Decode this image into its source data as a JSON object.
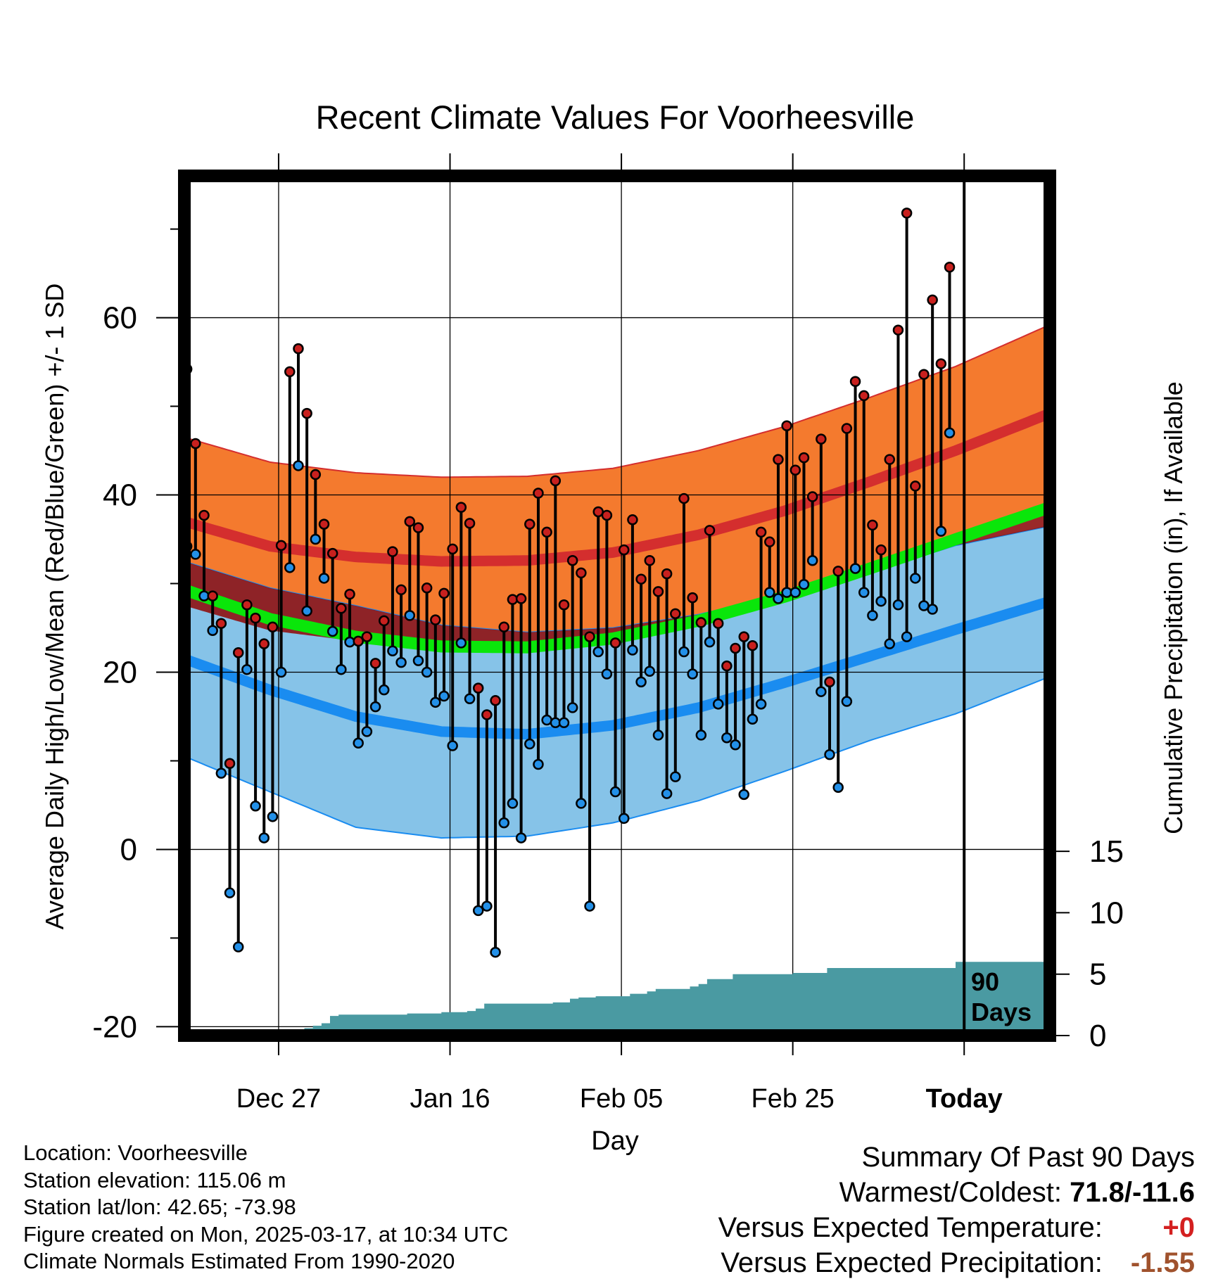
{
  "chart_data": {
    "type": "line",
    "title": "Recent Climate Values For Voorheesville",
    "xlabel": "Day",
    "ylabel": "Average Daily High/Low/Mean (Red/Blue/Green) +/- 1 SD",
    "y2label": "Cumulative Precipitation (in), If Available",
    "x_tick_labels": [
      "Dec 27",
      "Jan 16",
      "Feb 05",
      "Feb 25",
      "Today"
    ],
    "x_tick_days": [
      11,
      31,
      51,
      71,
      91
    ],
    "xlim": [
      0,
      101
    ],
    "ylim": [
      -21,
      76
    ],
    "y_ticks": [
      -20,
      0,
      20,
      40,
      60
    ],
    "y2lim": [
      0,
      70
    ],
    "y2_ticks": [
      0,
      5,
      10,
      15
    ],
    "today_label": "90\nDays",
    "today_label_line1": "90",
    "today_label_line2": "Days",
    "normals": {
      "days": [
        0,
        10,
        20,
        30,
        40,
        50,
        60,
        70,
        80,
        90,
        101
      ],
      "high_mean": [
        37.0,
        34.2,
        33.0,
        32.5,
        32.6,
        33.5,
        35.5,
        38.2,
        41.5,
        45.0,
        49.2
      ],
      "high_sd": [
        9.5,
        9.5,
        9.5,
        9.5,
        9.5,
        9.5,
        9.5,
        9.5,
        9.5,
        9.5,
        10.0
      ],
      "low_mean": [
        21.5,
        18.0,
        15.0,
        13.3,
        13.0,
        14.0,
        16.0,
        18.8,
        21.8,
        24.8,
        28.0
      ],
      "low_sd": [
        11.0,
        11.5,
        12.5,
        12.0,
        11.5,
        11.0,
        10.5,
        10.0,
        9.5,
        9.5,
        8.5
      ],
      "mean": [
        29.3,
        26.0,
        24.0,
        22.9,
        22.8,
        23.8,
        25.8,
        28.5,
        31.7,
        35.0,
        38.6
      ]
    },
    "observed_highs": [
      54.2,
      45.8,
      37.7,
      28.6,
      25.5,
      9.7,
      22.2,
      27.6,
      26.1,
      23.2,
      25.1,
      34.3,
      53.9,
      56.5,
      49.2,
      42.3,
      36.7,
      33.4,
      27.2,
      28.8,
      23.5,
      24.0,
      21.0,
      25.8,
      33.6,
      29.3,
      37.0,
      36.3,
      29.5,
      25.9,
      28.9,
      33.9,
      38.6,
      36.8,
      18.2,
      15.2,
      16.8,
      25.1,
      28.2,
      28.3,
      36.7,
      40.2,
      35.8,
      41.6,
      27.6,
      32.6,
      31.2,
      24.0,
      38.1,
      37.7,
      23.3,
      33.8,
      37.2,
      30.5,
      32.6,
      29.1,
      31.1,
      26.6,
      39.6,
      28.4,
      25.6,
      36.0,
      25.5,
      20.7,
      22.7,
      24.0,
      23.0,
      35.8,
      34.7,
      44.0,
      47.8,
      42.8,
      44.2,
      39.8,
      46.3,
      18.9,
      31.4,
      47.5,
      52.8,
      51.2,
      36.6,
      33.8,
      44.0,
      58.6,
      71.8,
      41.0,
      53.6,
      62.0,
      54.8,
      65.7
    ],
    "observed_lows": [
      34.2,
      33.3,
      28.6,
      24.7,
      8.6,
      -4.9,
      -11.0,
      20.3,
      4.9,
      1.3,
      3.7,
      20.0,
      31.8,
      43.3,
      26.9,
      35.0,
      30.6,
      24.6,
      20.3,
      23.4,
      12.0,
      13.3,
      16.1,
      18.0,
      22.4,
      21.1,
      26.4,
      21.3,
      20.0,
      16.6,
      17.3,
      11.7,
      23.3,
      17.0,
      -6.9,
      -6.4,
      -11.6,
      3.0,
      5.2,
      1.3,
      11.9,
      9.6,
      14.6,
      14.3,
      14.3,
      16.0,
      5.2,
      -6.4,
      22.3,
      19.8,
      6.5,
      3.5,
      22.5,
      18.9,
      20.1,
      12.9,
      6.3,
      8.2,
      22.3,
      19.8,
      12.9,
      23.4,
      16.4,
      12.6,
      11.8,
      6.2,
      14.7,
      16.4,
      29.0,
      28.3,
      29.0,
      29.0,
      29.9,
      32.6,
      17.8,
      10.7,
      7.0,
      16.7,
      31.7,
      29.0,
      26.4,
      28.0,
      23.2,
      27.6,
      24.0,
      30.6,
      27.5,
      27.1,
      35.9,
      47.0
    ],
    "precip_cumulative": {
      "days": [
        0,
        3,
        4,
        5,
        6,
        7,
        8,
        10,
        12,
        14,
        15,
        16,
        17,
        18,
        19,
        20,
        22,
        25,
        26,
        28,
        30,
        31,
        32,
        33,
        34,
        35,
        36,
        38,
        40,
        42,
        43,
        44,
        45,
        46,
        48,
        49,
        50,
        51,
        52,
        54,
        55,
        56,
        57,
        58,
        59,
        60,
        61,
        64,
        65,
        66,
        70,
        71,
        72,
        75,
        76,
        78,
        79,
        85,
        86,
        87,
        88,
        90,
        101
      ],
      "values": [
        0.0,
        0.0,
        0.3,
        0.4,
        0.4,
        0.4,
        0.5,
        0.5,
        0.5,
        0.6,
        0.8,
        1.0,
        1.6,
        1.7,
        1.7,
        1.7,
        1.7,
        1.7,
        1.8,
        1.8,
        1.9,
        1.9,
        1.9,
        2.0,
        2.2,
        2.6,
        2.6,
        2.6,
        2.6,
        2.6,
        2.7,
        2.7,
        3.0,
        3.1,
        3.2,
        3.2,
        3.2,
        3.2,
        3.4,
        3.6,
        3.8,
        3.8,
        3.8,
        3.8,
        4.0,
        4.2,
        4.6,
        5.0,
        5.0,
        5.0,
        5.0,
        5.1,
        5.1,
        5.5,
        5.5,
        5.5,
        5.5,
        5.5,
        5.5,
        5.5,
        5.5,
        6.0,
        6.0
      ]
    },
    "colors": {
      "high_band": "#f47a2e",
      "high_line": "#d42e2e",
      "high_overlap": "#8f1212",
      "low_band": "#86c3e8",
      "low_line": "#1a8cf0",
      "mean_line": "#0ae60a",
      "precip": "#4a9aa2",
      "high_marker": "#c8201e",
      "low_marker": "#2390e8"
    }
  },
  "info": {
    "location": "Location: Voorheesville",
    "elevation": "Station elevation: 115.06 m",
    "latlon": "Station lat/lon: 42.65; -73.98",
    "created": "Figure created on Mon, 2025-03-17, at 10:34 UTC",
    "normals": "Climate Normals Estimated From 1990-2020"
  },
  "summary": {
    "title": "Summary Of Past 90 Days",
    "warmest_coldest_label": "Warmest/Coldest:",
    "warmest_coldest_value": "71.8/-11.6",
    "temp_label": "Versus Expected Temperature:",
    "temp_value": "+0",
    "temp_color": "#d42020",
    "precip_label": "Versus Expected Precipitation:",
    "precip_value": "-1.55",
    "precip_color": "#a0522d"
  }
}
